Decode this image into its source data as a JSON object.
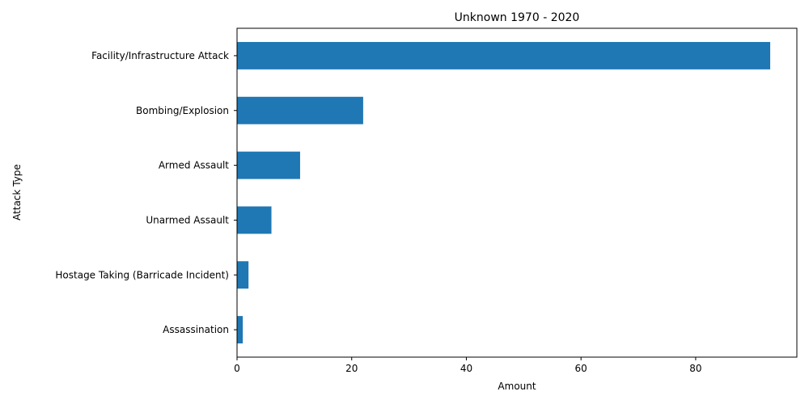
{
  "chart_data": {
    "type": "bar",
    "orientation": "horizontal",
    "title": "Unknown 1970 - 2020",
    "xlabel": "Amount",
    "ylabel": "Attack Type",
    "categories": [
      "Facility/Infrastructure Attack",
      "Bombing/Explosion",
      "Armed Assault",
      "Unarmed Assault",
      "Hostage Taking (Barricade Incident)",
      "Assassination"
    ],
    "values": [
      93,
      22,
      11,
      6,
      2,
      1
    ],
    "xlim": [
      0,
      97.65
    ],
    "xticks": [
      0,
      20,
      40,
      60,
      80
    ],
    "grid": false,
    "legend": "none",
    "bar_color": "#1f77b4"
  }
}
